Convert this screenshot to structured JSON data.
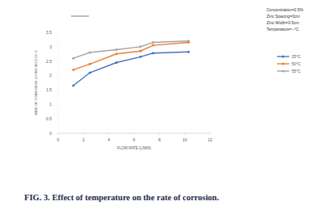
{
  "chart_data": {
    "type": "line",
    "caption": "FIG. 3. Effect of temperature on the rate of corrosion.",
    "annotations": [
      "Concentration=2.5%",
      "Zinc Spacing=3cm",
      "Zinc Width=0.5cm",
      "Temperature=--°C"
    ],
    "x_label": "FLOW RATE (L/MIN)",
    "y_label": "RATE OF CORROSION (G/CM2 SEC)*10^-3",
    "x": [
      1.2,
      2.5,
      4.6,
      6.5,
      7.5,
      10.3
    ],
    "series": [
      {
        "name": "25°C",
        "color": "#4472c4",
        "marker": "circle",
        "values": [
          1.65,
          2.1,
          2.45,
          2.65,
          2.78,
          2.82
        ]
      },
      {
        "name": "50°C",
        "color": "#ed7d31",
        "marker": "circle",
        "values": [
          2.2,
          2.4,
          2.75,
          2.85,
          3.05,
          3.15
        ]
      },
      {
        "name": "55°C",
        "color": "#a5a5a5",
        "marker": "circle",
        "values": [
          2.6,
          2.8,
          2.9,
          3.0,
          3.15,
          3.2
        ]
      }
    ],
    "xlim": [
      0,
      12
    ],
    "xticks": [
      0,
      2,
      4,
      6,
      8,
      10,
      12
    ],
    "ylim": [
      0,
      3.5
    ],
    "yticks": [
      0,
      0.5,
      1,
      1.5,
      2,
      2.5,
      3,
      3.5
    ],
    "grid": false,
    "legend": "right"
  }
}
